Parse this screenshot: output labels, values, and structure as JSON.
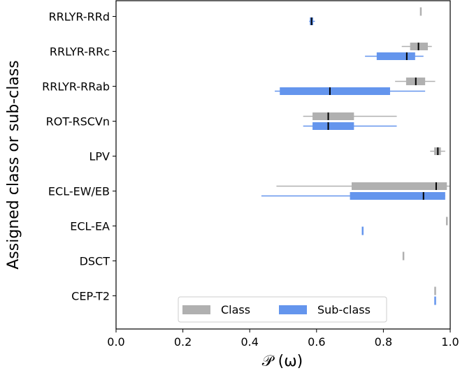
{
  "chart_data": {
    "type": "boxplot",
    "xlabel": "𝒫 (ω)",
    "ylabel": "Assigned class or sub-class",
    "xlim": [
      0.0,
      1.0
    ],
    "xticks": [
      "0.0",
      "0.2",
      "0.4",
      "0.6",
      "0.8",
      "1.0"
    ],
    "categories": [
      "RRLYR-RRd",
      "RRLYR-RRc",
      "RRLYR-RRab",
      "ROT-RSCVn",
      "LPV",
      "ECL-EW/EB",
      "ECL-EA",
      "DSCT",
      "CEP-T2"
    ],
    "legend": {
      "position": "lower-center",
      "entries": [
        "Class",
        "Sub-class"
      ]
    },
    "colors": {
      "class": "#b0b0b0",
      "subclass": "#6495ed",
      "median": "#000000"
    },
    "series": [
      {
        "name": "Class",
        "boxes": [
          {
            "category": "RRLYR-RRd",
            "whislo": 0.912,
            "q1": 0.912,
            "med": 0.912,
            "q3": 0.912,
            "whishi": 0.912
          },
          {
            "category": "RRLYR-RRc",
            "whislo": 0.855,
            "q1": 0.88,
            "med": 0.905,
            "q3": 0.933,
            "whishi": 0.945
          },
          {
            "category": "RRLYR-RRab",
            "whislo": 0.835,
            "q1": 0.868,
            "med": 0.897,
            "q3": 0.925,
            "whishi": 0.955
          },
          {
            "category": "ROT-RSCVn",
            "whislo": 0.56,
            "q1": 0.588,
            "med": 0.635,
            "q3": 0.712,
            "whishi": 0.84
          },
          {
            "category": "LPV",
            "whislo": 0.94,
            "q1": 0.952,
            "med": 0.963,
            "q3": 0.972,
            "whishi": 0.985
          },
          {
            "category": "ECL-EW/EB",
            "whislo": 0.48,
            "q1": 0.705,
            "med": 0.958,
            "q3": 0.99,
            "whishi": 0.998
          },
          {
            "category": "ECL-EA",
            "whislo": 0.99,
            "q1": 0.99,
            "med": 0.99,
            "q3": 0.99,
            "whishi": 0.99
          },
          {
            "category": "DSCT",
            "whislo": 0.86,
            "q1": 0.86,
            "med": 0.86,
            "q3": 0.86,
            "whishi": 0.86
          },
          {
            "category": "CEP-T2",
            "whislo": 0.955,
            "q1": 0.955,
            "med": 0.955,
            "q3": 0.955,
            "whishi": 0.955
          }
        ]
      },
      {
        "name": "Sub-class",
        "boxes": [
          {
            "category": "RRLYR-RRd",
            "whislo": 0.578,
            "q1": 0.58,
            "med": 0.585,
            "q3": 0.59,
            "whishi": 0.595
          },
          {
            "category": "RRLYR-RRc",
            "whislo": 0.745,
            "q1": 0.78,
            "med": 0.87,
            "q3": 0.895,
            "whishi": 0.92
          },
          {
            "category": "RRLYR-RRab",
            "whislo": 0.475,
            "q1": 0.49,
            "med": 0.64,
            "q3": 0.82,
            "whishi": 0.925
          },
          {
            "category": "ROT-RSCVn",
            "whislo": 0.56,
            "q1": 0.588,
            "med": 0.635,
            "q3": 0.712,
            "whishi": 0.84
          },
          {
            "category": "ECL-EW/EB",
            "whislo": 0.435,
            "q1": 0.7,
            "med": 0.92,
            "q3": 0.985,
            "whishi": 0.985
          },
          {
            "category": "ECL-EA",
            "whislo": 0.738,
            "q1": 0.738,
            "med": 0.738,
            "q3": 0.738,
            "whishi": 0.738
          },
          {
            "category": "CEP-T2",
            "whislo": 0.955,
            "q1": 0.955,
            "med": 0.955,
            "q3": 0.955,
            "whishi": 0.955
          }
        ]
      }
    ]
  }
}
